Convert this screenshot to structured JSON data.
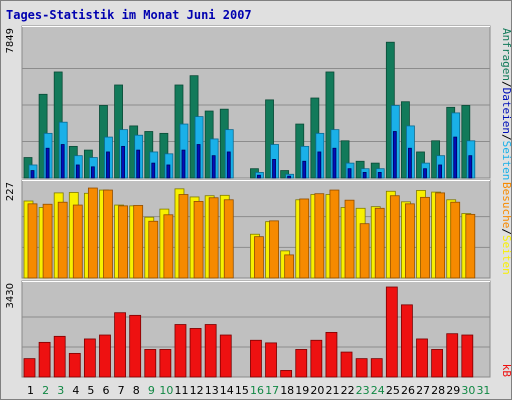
{
  "title": "Tages-Statistik im Monat Juni 2007",
  "colors": {
    "background": "#e0e0e0",
    "plot_bg": "#c0c0c0",
    "title": "#0000b0",
    "anfragen": "#127a5a",
    "seiten": "#1ab0e8",
    "dateien": "#0010b8",
    "besuche": "#f8f000",
    "rechner": "#f68a00",
    "kb": "#ee1111",
    "weekday_label": "#000000",
    "weekend_label": "#118844"
  },
  "right_labels": {
    "top": [
      "Anfragen",
      "/",
      "Dateien",
      "/",
      "Seiten"
    ],
    "middle": [
      "Besuche",
      "/",
      "Seiten"
    ],
    "bottom": [
      "kB"
    ]
  },
  "chart_data": {
    "type": "bar",
    "title": "Tages-Statistik im Monat Juni 2007",
    "days": [
      "1",
      "2",
      "3",
      "4",
      "5",
      "6",
      "7",
      "8",
      "9",
      "10",
      "11",
      "12",
      "13",
      "14",
      "15",
      "16",
      "17",
      "18",
      "19",
      "20",
      "21",
      "22",
      "23",
      "24",
      "25",
      "26",
      "27",
      "28",
      "29",
      "30",
      "31"
    ],
    "weekend_days": [
      "2",
      "3",
      "9",
      "10",
      "16",
      "17",
      "23",
      "24",
      "30",
      "31"
    ],
    "panels": [
      {
        "name": "top",
        "max_label": "7849",
        "ylim": [
          0,
          7849
        ],
        "series": [
          {
            "name": "Anfragen",
            "values": [
              1100,
              4500,
              5700,
              1700,
              1500,
              3900,
              5000,
              2800,
              2500,
              2400,
              5000,
              5500,
              3600,
              3700,
              0,
              500,
              4200,
              400,
              2900,
              4300,
              5700,
              2000,
              900,
              800,
              7300,
              4100,
              1400,
              2000,
              3800,
              3900,
              0
            ]
          },
          {
            "name": "Seiten",
            "values": [
              700,
              2400,
              3000,
              1200,
              1100,
              2200,
              2600,
              2300,
              1400,
              1300,
              2900,
              3300,
              2100,
              2600,
              0,
              300,
              1800,
              200,
              1700,
              2400,
              2600,
              800,
              500,
              500,
              3900,
              2800,
              800,
              1200,
              3500,
              2000,
              0
            ]
          },
          {
            "name": "Dateien",
            "values": [
              400,
              1600,
              1800,
              700,
              600,
              1400,
              1700,
              1500,
              800,
              700,
              1500,
              1800,
              1200,
              1400,
              0,
              150,
              1000,
              100,
              900,
              1400,
              1600,
              500,
              300,
              300,
              2500,
              1600,
              500,
              700,
              2200,
              1200,
              0
            ]
          }
        ]
      },
      {
        "name": "middle",
        "max_label": "227",
        "ylim": [
          0,
          227
        ],
        "series": [
          {
            "name": "Besuche",
            "values": [
              190,
              174,
              210,
              211,
              209,
              217,
              180,
              178,
              150,
              170,
              220,
              200,
              203,
              204,
              0,
              108,
              139,
              67,
              193,
              206,
              206,
              174,
              172,
              176,
              214,
              188,
              216,
              212,
              193,
              159,
              0
            ]
          },
          {
            "name": "Seiten",
            "values": [
              183,
              182,
              187,
              180,
              222,
              217,
              178,
              179,
              140,
              156,
              206,
              189,
              198,
              193,
              0,
              102,
              141,
              57,
              195,
              208,
              217,
              192,
              134,
              172,
              203,
              183,
              199,
              210,
              187,
              157,
              0
            ]
          }
        ]
      },
      {
        "name": "bottom",
        "max_label": "3430",
        "ylim": [
          0,
          3430
        ],
        "series": [
          {
            "name": "kB",
            "values": [
              700,
              1320,
              1550,
              900,
              1450,
              1600,
              2450,
              2350,
              1050,
              1050,
              2000,
              1850,
              2000,
              1600,
              0,
              1400,
              1300,
              250,
              1050,
              1400,
              1700,
              950,
              700,
              700,
              3430,
              2750,
              1450,
              1050,
              1650,
              1600,
              0
            ]
          }
        ]
      }
    ]
  }
}
